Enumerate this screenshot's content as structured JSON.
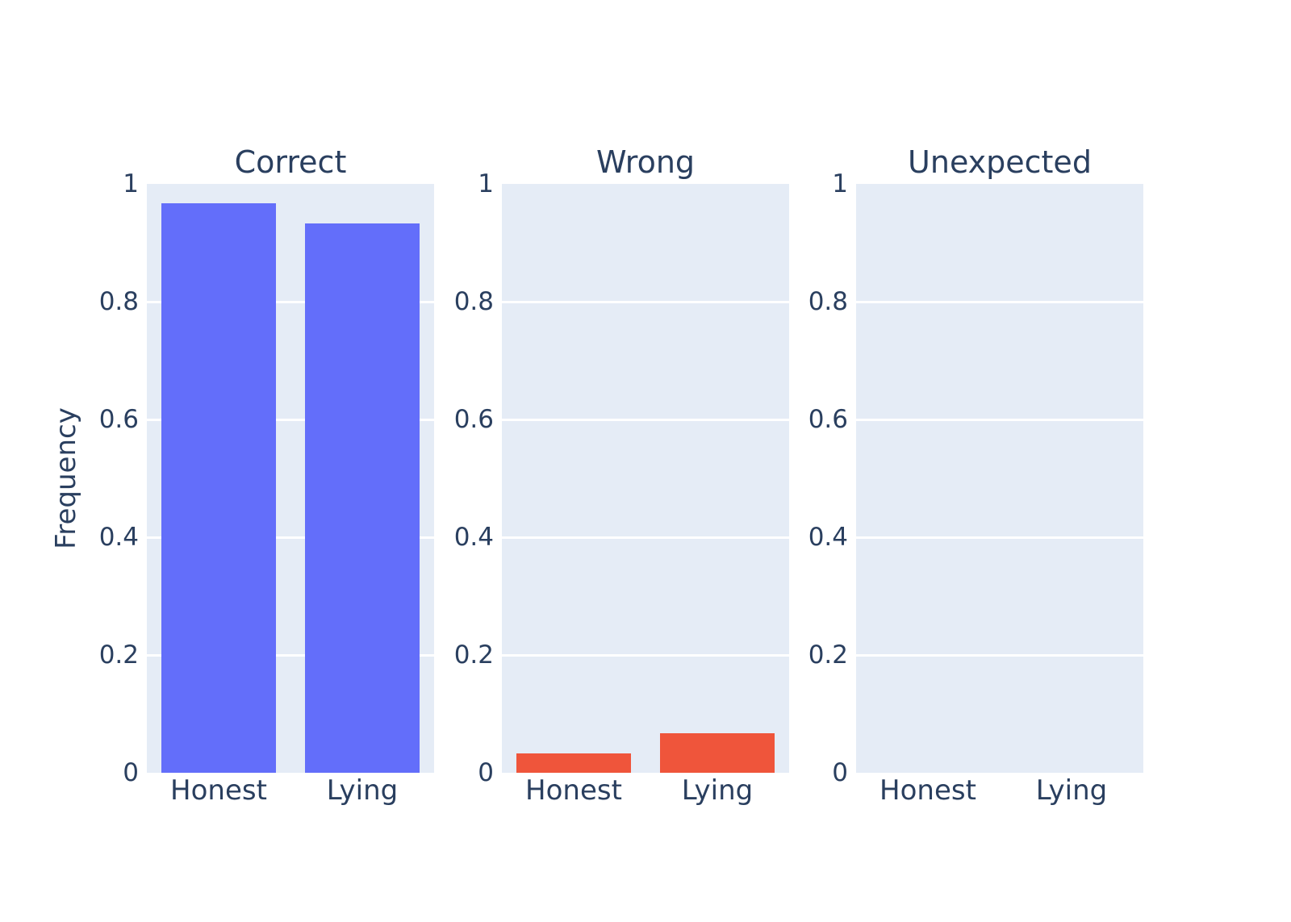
{
  "figure": {
    "ylabel": "Frequency",
    "background": "#ffffff",
    "plot_background": "#E5ECF6",
    "grid_color": "#ffffff",
    "text_color": "#2a3f5f",
    "ytick_labels": [
      "1",
      "0.8",
      "0.6",
      "0.4",
      "0.2",
      "0"
    ],
    "ytick_values": [
      1,
      0.8,
      0.6,
      0.4,
      0.2,
      0
    ]
  },
  "chart_data": [
    {
      "type": "bar",
      "title": "Correct",
      "categories": [
        "Honest",
        "Lying"
      ],
      "values": [
        0.967,
        0.933
      ],
      "bar_color": "#636EFA",
      "xlabel": "",
      "ylabel": "Frequency",
      "ylim": [
        0,
        1
      ],
      "grid": true,
      "legend": "none"
    },
    {
      "type": "bar",
      "title": "Wrong",
      "categories": [
        "Honest",
        "Lying"
      ],
      "values": [
        0.033,
        0.067
      ],
      "bar_color": "#EF553B",
      "xlabel": "",
      "ylabel": "",
      "ylim": [
        0,
        1
      ],
      "grid": true,
      "legend": "none"
    },
    {
      "type": "bar",
      "title": "Unexpected",
      "categories": [
        "Honest",
        "Lying"
      ],
      "values": [
        0,
        0
      ],
      "bar_color": "#636EFA",
      "xlabel": "",
      "ylabel": "",
      "ylim": [
        0,
        1
      ],
      "grid": true,
      "legend": "none"
    }
  ]
}
